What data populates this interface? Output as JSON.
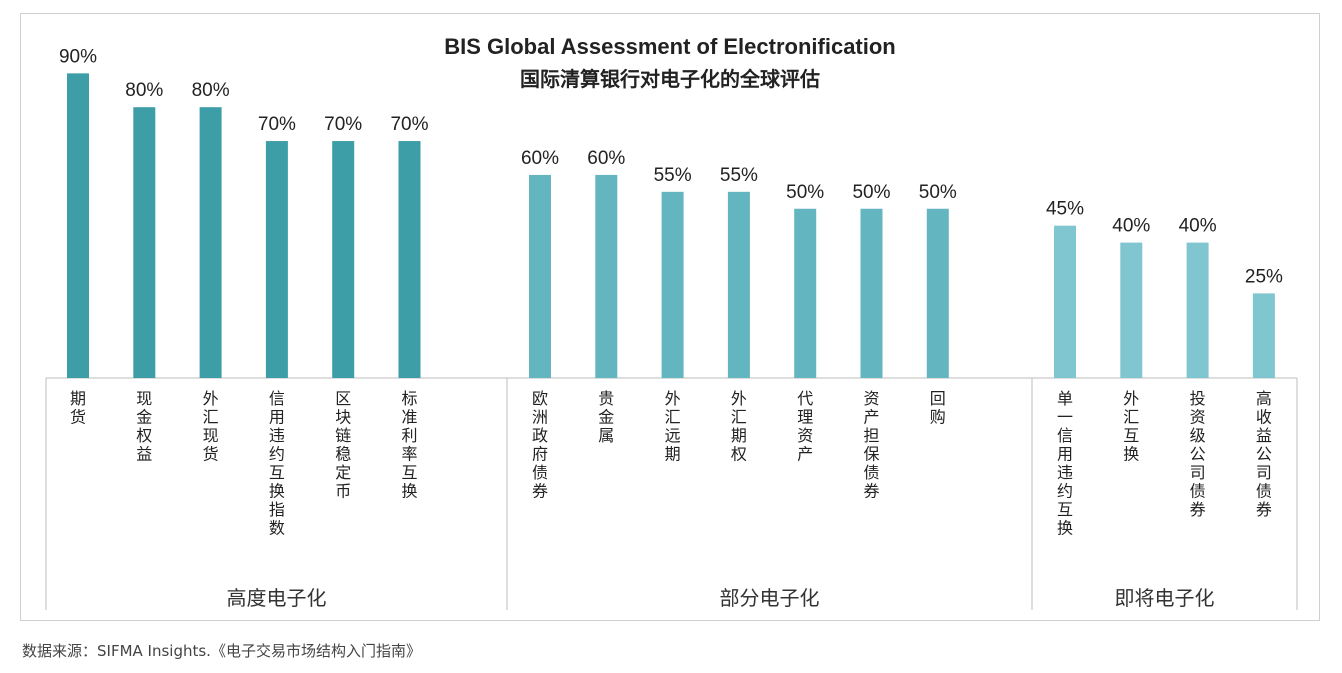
{
  "chart_data": {
    "type": "bar",
    "title": "BIS Global Assessment of Electronification",
    "subtitle": "国际清算银行对电子化的全球评估",
    "unit": "%",
    "ylim": [
      0,
      100
    ],
    "groups": [
      {
        "name": "高度电子化",
        "color": "#3e9ea8",
        "categories": [
          "期货",
          "现金权益",
          "外汇现货",
          "信用违约互换指数",
          "区块链稳定币",
          "标准利率互换"
        ],
        "values": [
          90,
          80,
          80,
          70,
          70,
          70
        ]
      },
      {
        "name": "部分电子化",
        "color": "#63b5c0",
        "categories": [
          "欧洲政府债券",
          "贵金属",
          "外汇远期",
          "外汇期权",
          "代理资产",
          "资产担保债券",
          "回购"
        ],
        "values": [
          60,
          60,
          55,
          55,
          50,
          50,
          50
        ]
      },
      {
        "name": "即将电子化",
        "color": "#80c6d0",
        "categories": [
          "单一信用违约互换",
          "外汇互换",
          "投资级公司债券",
          "高收益公司债券"
        ],
        "values": [
          45,
          40,
          40,
          25
        ]
      }
    ]
  },
  "source": "数据来源：SIFMA Insights.《电子交易市场结构入门指南》"
}
